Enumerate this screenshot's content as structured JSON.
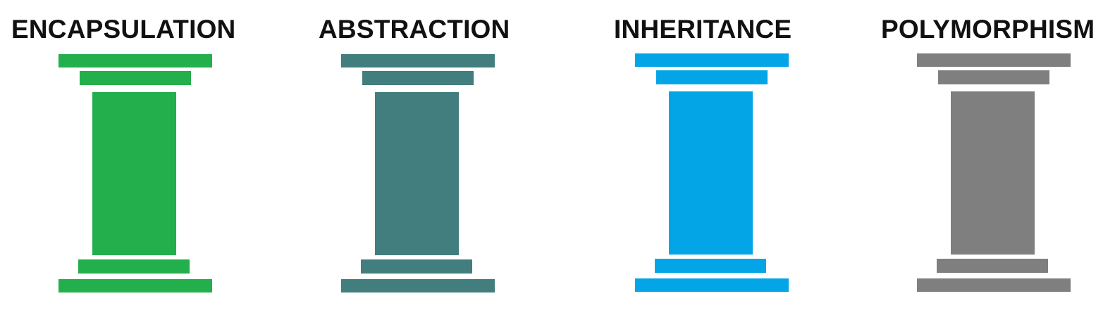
{
  "pillars": [
    {
      "title": "ENCAPSULATION",
      "color": "#23af4c",
      "icon": "pillar-icon"
    },
    {
      "title": "ABSTRACTION",
      "color": "#437e7e",
      "icon": "pillar-icon"
    },
    {
      "title": "INHERITANCE",
      "color": "#04a5e7",
      "icon": "pillar-icon"
    },
    {
      "title": "POLYMORPHISM",
      "color": "#7f7f7f",
      "icon": "pillar-icon"
    }
  ]
}
